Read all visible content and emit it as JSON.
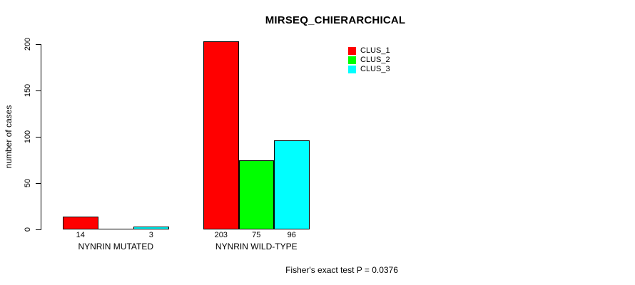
{
  "chart_data": {
    "type": "bar",
    "title": "MIRSEQ_CHIERARCHICAL",
    "xlabel": "",
    "ylabel": "number of cases",
    "ylim": [
      0,
      200
    ],
    "yticks": [
      0,
      50,
      100,
      150,
      200
    ],
    "grid": false,
    "legend_position": "top-right",
    "categories": [
      "NYNRIN MUTATED",
      "NYNRIN WILD-TYPE"
    ],
    "series": [
      {
        "name": "CLUS_1",
        "color": "#ff0000",
        "values": [
          14,
          203
        ]
      },
      {
        "name": "CLUS_2",
        "color": "#00ff00",
        "values": [
          0,
          75
        ]
      },
      {
        "name": "CLUS_3",
        "color": "#00ffff",
        "values": [
          3,
          96
        ]
      }
    ],
    "value_labels": [
      [
        "14",
        null,
        "3"
      ],
      [
        "203",
        "75",
        "96"
      ]
    ],
    "annotation": "Fisher's exact test P = 0.0376"
  }
}
